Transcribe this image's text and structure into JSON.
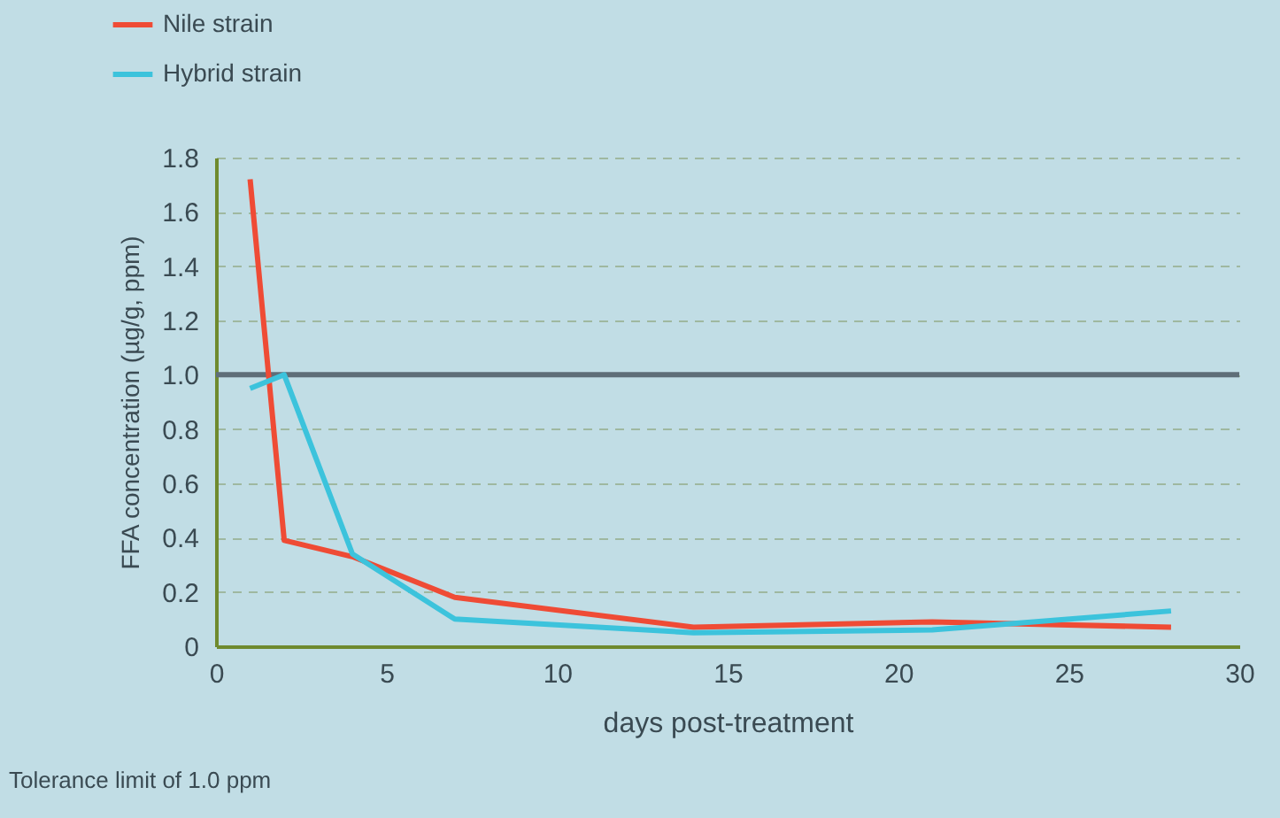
{
  "chart_data": {
    "type": "line",
    "xlabel": "days post-treatment",
    "ylabel": "FFA concentration (µg/g, ppm)",
    "annotations": [
      "Tolerance limit of 1.0 ppm"
    ],
    "x": [
      1,
      2,
      4,
      7,
      14,
      21,
      28
    ],
    "series": [
      {
        "name": "Nile strain",
        "color": "#ef4b35",
        "values": [
          1.72,
          0.39,
          0.33,
          0.18,
          0.07,
          0.09,
          0.07
        ]
      },
      {
        "name": "Hybrid strain",
        "color": "#3cc3dc",
        "values": [
          0.95,
          1.0,
          0.34,
          0.1,
          0.05,
          0.06,
          0.13
        ]
      }
    ],
    "xlim": [
      0,
      30
    ],
    "xticks": [
      0,
      5,
      10,
      15,
      20,
      25,
      30
    ],
    "ylim": [
      0,
      1.8
    ],
    "yticks": [
      0,
      0.2,
      0.4,
      0.6,
      0.8,
      {
        "value": 1.0,
        "label": "1.0"
      },
      1.2,
      1.4,
      1.6,
      1.8
    ],
    "ref_lines": [
      {
        "axis": "y",
        "value": 1.0,
        "color": "#5f6e78",
        "line_style": "solid"
      }
    ],
    "grid": "y",
    "legend": "top left",
    "marker": "none",
    "line_style": "solid"
  }
}
